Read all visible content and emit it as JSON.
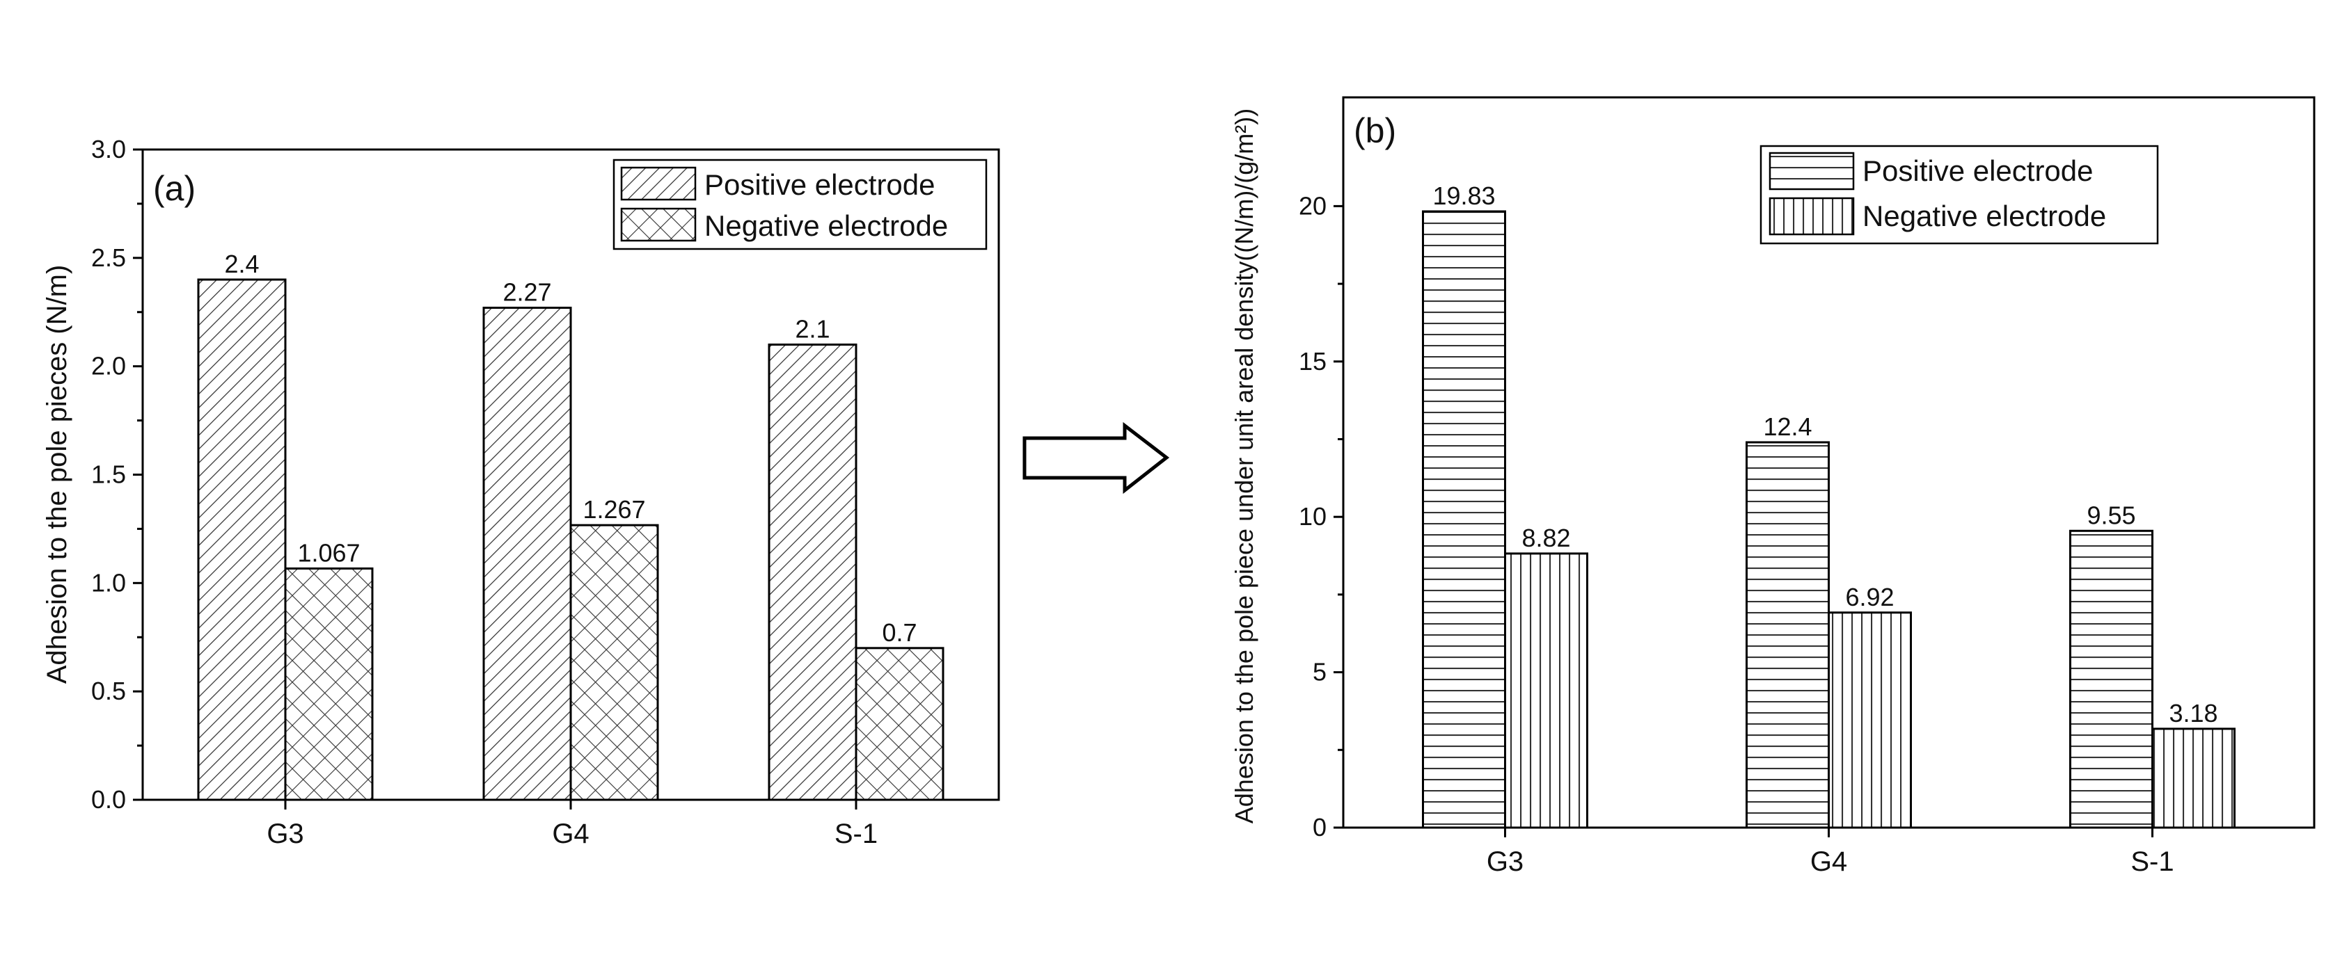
{
  "chart_data": [
    {
      "type": "bar",
      "panel_label": "(a)",
      "title": "",
      "xlabel": "",
      "ylabel": "Adhesion to the pole pieces (N/m)",
      "categories": [
        "G3",
        "G4",
        "S-1"
      ],
      "ylim": [
        0,
        3.0
      ],
      "yticks": [
        0.0,
        0.5,
        1.0,
        1.5,
        2.0,
        2.5,
        3.0
      ],
      "ytick_labels": [
        "0.0",
        "0.5",
        "1.0",
        "1.5",
        "2.0",
        "2.5",
        "3.0"
      ],
      "legend_position": "top-right",
      "series": [
        {
          "name": "Positive electrode",
          "pattern": "diagonal-hatch",
          "values": [
            2.4,
            2.27,
            2.1
          ],
          "labels": [
            "2.4",
            "2.27",
            "2.1"
          ]
        },
        {
          "name": "Negative electrode",
          "pattern": "crosshatch",
          "values": [
            1.067,
            1.267,
            0.7
          ],
          "labels": [
            "1.067",
            "1.267",
            "0.7"
          ]
        }
      ]
    },
    {
      "type": "bar",
      "panel_label": "(b)",
      "title": "",
      "xlabel": "",
      "ylabel": "Adhesion to the pole piece under unit areal density((N/m)/(g/m²))",
      "categories": [
        "G3",
        "G4",
        "S-1"
      ],
      "ylim": [
        0,
        23.5
      ],
      "yticks": [
        0,
        5,
        10,
        15,
        20
      ],
      "ytick_labels": [
        "0",
        "5",
        "10",
        "15",
        "20"
      ],
      "legend_position": "top-right",
      "series": [
        {
          "name": "Positive electrode",
          "pattern": "horizontal-lines",
          "values": [
            19.83,
            12.4,
            9.55
          ],
          "labels": [
            "19.83",
            "12.4",
            "9.55"
          ]
        },
        {
          "name": "Negative electrode",
          "pattern": "vertical-lines",
          "values": [
            8.82,
            6.92,
            3.18
          ],
          "labels": [
            "8.82",
            "6.92",
            "3.18"
          ]
        }
      ]
    }
  ],
  "arrow": {
    "direction": "right"
  }
}
